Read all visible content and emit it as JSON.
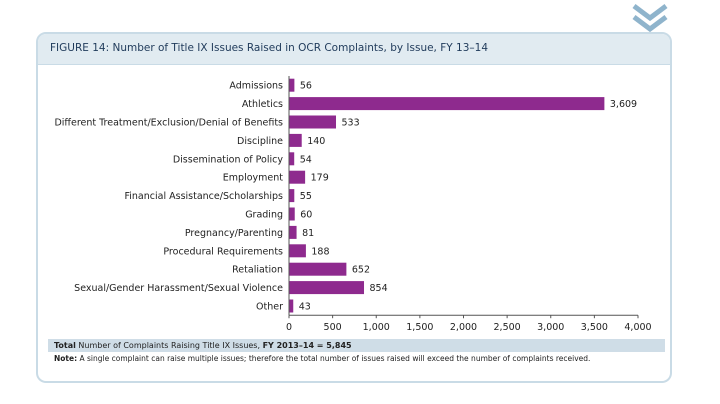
{
  "figure": {
    "title": "FIGURE 14: Number of Title IX Issues Raised in OCR Complaints, by Issue, FY 13–14"
  },
  "footer": {
    "total_label": "Total",
    "total_text": "Number of Complaints Raising Title IX Issues,",
    "total_value": "FY 2013–14 = 5,845",
    "note_label": "Note:",
    "note_text": "A single complaint can raise multiple issues; therefore the total number of issues raised will exceed the number of complaints received."
  },
  "colors": {
    "bar": "#8e2a8e",
    "header_bg": "#e1ebf1",
    "border": "#c9dbe6",
    "chevron": "#8fb4cc"
  },
  "chart_data": {
    "type": "bar",
    "orientation": "horizontal",
    "categories": [
      "Admissions",
      "Athletics",
      "Different Treatment/Exclusion/Denial of Benefits",
      "Discipline",
      "Dissemination of Policy",
      "Employment",
      "Financial Assistance/Scholarships",
      "Grading",
      "Pregnancy/Parenting",
      "Procedural Requirements",
      "Retaliation",
      "Sexual/Gender Harassment/Sexual Violence",
      "Other"
    ],
    "values": [
      56,
      3609,
      533,
      140,
      54,
      179,
      55,
      60,
      81,
      188,
      652,
      854,
      43
    ],
    "value_labels": [
      "56",
      "3,609",
      "533",
      "140",
      "54",
      "179",
      "55",
      "60",
      "81",
      "188",
      "652",
      "854",
      "43"
    ],
    "xlim": [
      0,
      4000
    ],
    "x_ticks": [
      0,
      500,
      1000,
      1500,
      2000,
      2500,
      3000,
      3500,
      4000
    ],
    "x_tick_labels": [
      "0",
      "500",
      "1,000",
      "1,500",
      "2,000",
      "2,500",
      "3,000",
      "3,500",
      "4,000"
    ],
    "grid": false
  }
}
